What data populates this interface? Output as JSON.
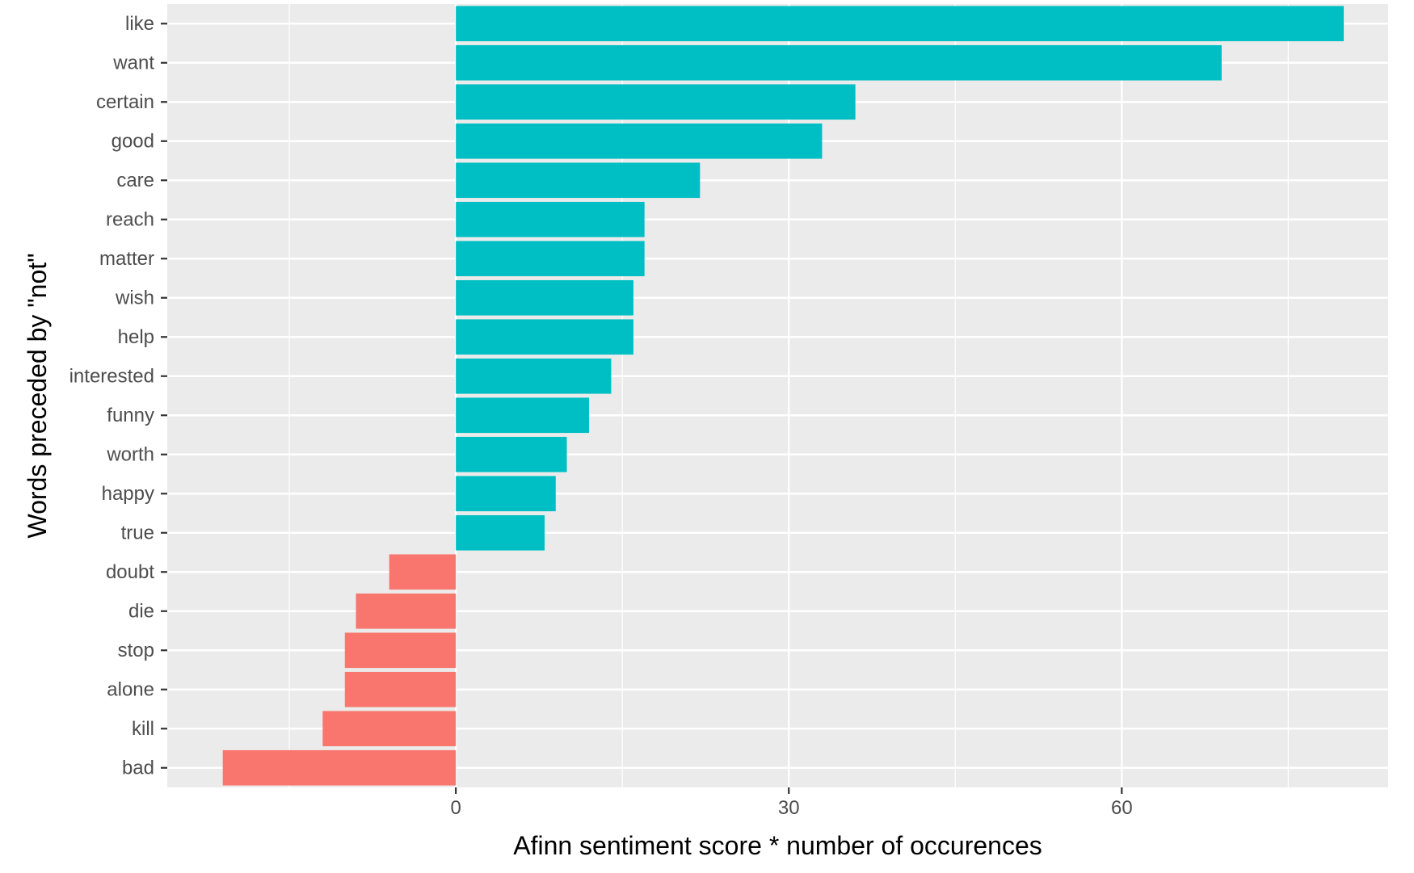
{
  "chart_data": {
    "type": "bar",
    "orientation": "horizontal",
    "title": "",
    "xlabel": "Afinn sentiment score * number of occurences",
    "ylabel": "Words preceded by \"not\"",
    "xlim": [
      -26,
      84
    ],
    "xticks": [
      0,
      30,
      60
    ],
    "xtick_labels": [
      "0",
      "30",
      "60"
    ],
    "grid": true,
    "legend": "none",
    "colors": {
      "positive": "#00BFC4",
      "negative": "#F8766D",
      "panel": "#EBEBEB",
      "grid": "#FFFFFF"
    },
    "categories": [
      "like",
      "want",
      "certain",
      "good",
      "care",
      "reach",
      "matter",
      "wish",
      "help",
      "interested",
      "funny",
      "worth",
      "happy",
      "true",
      "doubt",
      "die",
      "stop",
      "alone",
      "kill",
      "bad"
    ],
    "values": [
      80,
      69,
      36,
      33,
      22,
      17,
      17,
      16,
      16,
      14,
      12,
      10,
      9,
      8,
      -6,
      -9,
      -10,
      -10,
      -12,
      -21
    ]
  }
}
